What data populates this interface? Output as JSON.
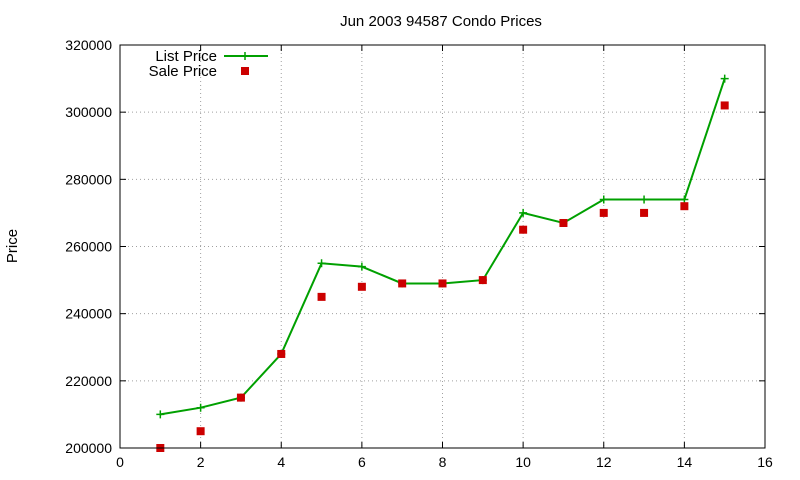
{
  "chart_data": {
    "type": "line",
    "title": "Jun 2003 94587 Condo Prices",
    "xlabel": "",
    "ylabel": "Price",
    "xlim": [
      0,
      16
    ],
    "ylim": [
      200000,
      320000
    ],
    "x_ticks": [
      0,
      2,
      4,
      6,
      8,
      10,
      12,
      14,
      16
    ],
    "y_ticks": [
      200000,
      220000,
      240000,
      260000,
      280000,
      300000,
      320000
    ],
    "grid": true,
    "legend_position": "top-left",
    "series": [
      {
        "name": "List Price",
        "style": "line+plus",
        "color": "#00a000",
        "x": [
          1,
          2,
          3,
          4,
          5,
          6,
          7,
          8,
          9,
          10,
          11,
          12,
          13,
          14,
          15
        ],
        "values": [
          210000,
          212000,
          215000,
          228000,
          255000,
          254000,
          249000,
          249000,
          250000,
          270000,
          267000,
          274000,
          274000,
          274000,
          310000
        ]
      },
      {
        "name": "Sale Price",
        "style": "square-points",
        "color": "#cc0000",
        "x": [
          1,
          2,
          3,
          4,
          5,
          6,
          7,
          8,
          9,
          10,
          11,
          12,
          13,
          14,
          15
        ],
        "values": [
          200000,
          205000,
          215000,
          228000,
          245000,
          248000,
          249000,
          249000,
          250000,
          265000,
          267000,
          270000,
          270000,
          272000,
          302000
        ]
      }
    ]
  }
}
